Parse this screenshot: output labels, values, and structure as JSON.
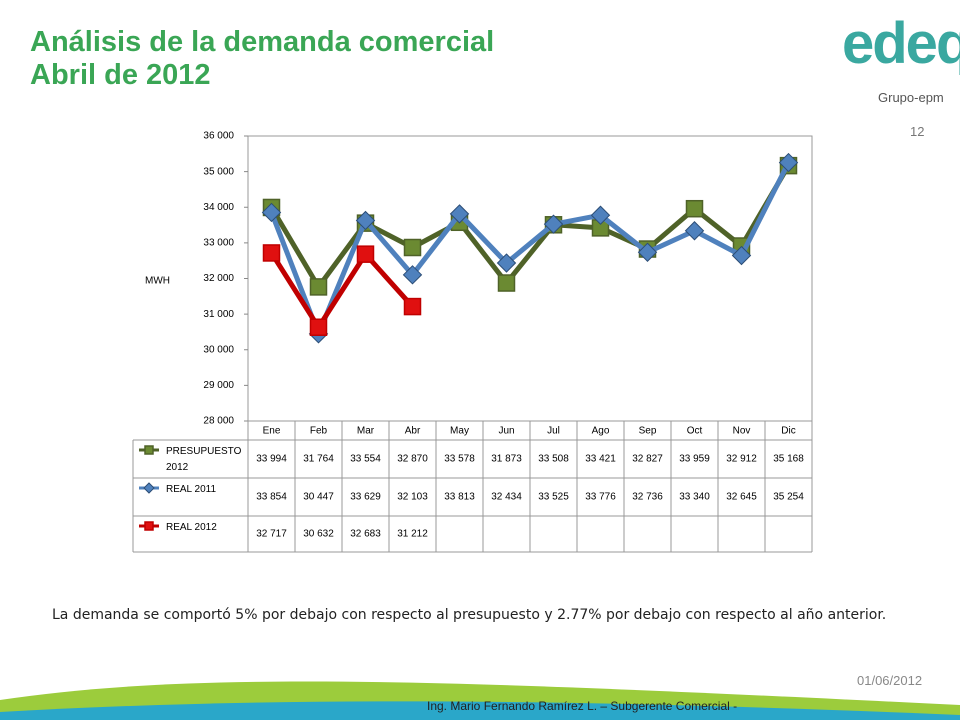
{
  "slide": {
    "title_line1": "Análisis de la demanda comercial",
    "title_line2": "Abril  de 2012",
    "page_number": "12",
    "logo_brand": "edeq",
    "logo_group": "Grupo-epm",
    "note": "La demanda se comportó 5% por debajo con respecto al presupuesto y 2.77% por debajo con respecto al año anterior.",
    "date": "01/06/2012",
    "author": "Ing. Mario Fernando Ramírez L. – Subgerente Comercial -"
  },
  "chart_data": {
    "type": "line",
    "ylabel": "MWH",
    "categories": [
      "Ene",
      "Feb",
      "Mar",
      "Abr",
      "May",
      "Jun",
      "Jul",
      "Ago",
      "Sep",
      "Oct",
      "Nov",
      "Dic"
    ],
    "ylim": [
      28000,
      36000
    ],
    "yticks": [
      {
        "value": 28000,
        "label": "28 000"
      },
      {
        "value": 29000,
        "label": "29 000"
      },
      {
        "value": 30000,
        "label": "30 000"
      },
      {
        "value": 31000,
        "label": "31 000"
      },
      {
        "value": 32000,
        "label": "32 000"
      },
      {
        "value": 33000,
        "label": "33 000"
      },
      {
        "value": 34000,
        "label": "34 000"
      },
      {
        "value": 35000,
        "label": "35 000"
      },
      {
        "value": 36000,
        "label": "36 000"
      }
    ],
    "series": [
      {
        "name": "PRESUPUESTO 2012",
        "color": "#4f6228",
        "marker": "square",
        "marker_color": "#6b8a32",
        "values": [
          33994,
          31764,
          33554,
          32870,
          33578,
          31873,
          33508,
          33421,
          32827,
          33959,
          32912,
          35168
        ],
        "value_labels": [
          "33 994",
          "31 764",
          "33 554",
          "32 870",
          "33 578",
          "31 873",
          "33 508",
          "33 421",
          "32 827",
          "33 959",
          "32 912",
          "35 168"
        ]
      },
      {
        "name": "REAL 2011",
        "color": "#4f81bd",
        "marker": "diamond",
        "marker_color": "#4f81bd",
        "values": [
          33854,
          30447,
          33629,
          32103,
          33813,
          32434,
          33525,
          33776,
          32736,
          33340,
          32645,
          35254
        ],
        "value_labels": [
          "33 854",
          "30 447",
          "33 629",
          "32 103",
          "33 813",
          "32 434",
          "33 525",
          "33 776",
          "32 736",
          "33 340",
          "32 645",
          "35 254"
        ]
      },
      {
        "name": "REAL 2012",
        "color": "#c00000",
        "marker": "square",
        "marker_color": "#e01010",
        "values": [
          32717,
          30632,
          32683,
          31212,
          null,
          null,
          null,
          null,
          null,
          null,
          null,
          null
        ],
        "value_labels": [
          "32 717",
          "30 632",
          "32 683",
          "31 212",
          null,
          null,
          null,
          null,
          null,
          null,
          null,
          null
        ]
      }
    ]
  }
}
